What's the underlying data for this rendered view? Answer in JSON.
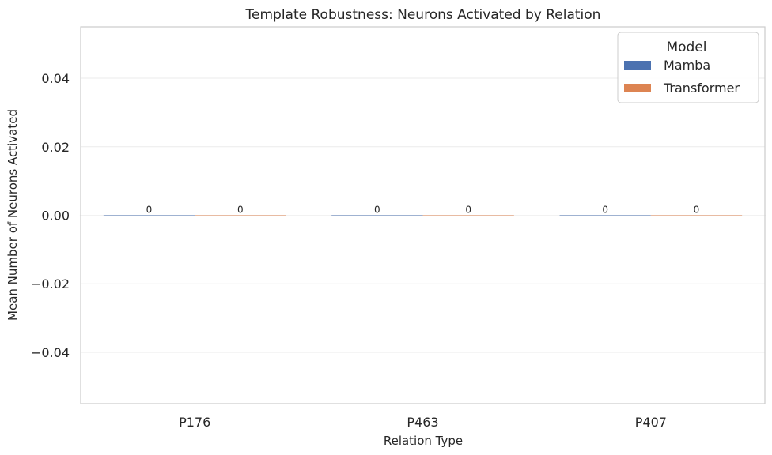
{
  "chart_data": {
    "type": "bar",
    "title": "Template Robustness: Neurons Activated by Relation",
    "xlabel": "Relation Type",
    "ylabel": "Mean Number of Neurons Activated",
    "categories": [
      "P176",
      "P463",
      "P407"
    ],
    "series": [
      {
        "name": "Mamba",
        "values": [
          0,
          0,
          0
        ],
        "color": "#4c72b0"
      },
      {
        "name": "Transformer",
        "values": [
          0,
          0,
          0
        ],
        "color": "#dd8452"
      }
    ],
    "ylim": [
      -0.055,
      0.055
    ],
    "yticks": [
      -0.04,
      -0.02,
      0.0,
      0.02,
      0.04
    ],
    "ytick_labels": [
      "−0.04",
      "−0.02",
      "0.00",
      "0.02",
      "0.04"
    ],
    "data_labels": [
      "0",
      "0",
      "0",
      "0",
      "0",
      "0"
    ],
    "grid": true,
    "legend": {
      "title": "Model",
      "placement": "top-right"
    }
  }
}
